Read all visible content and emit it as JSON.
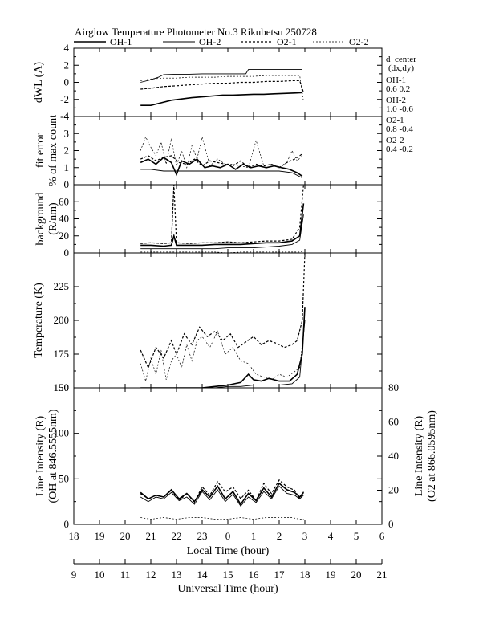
{
  "title": "Airglow Temperature Photometer No.3  Rikubetsu    250728",
  "legend": [
    {
      "name": "OH-1",
      "dash": "",
      "width": 1.6
    },
    {
      "name": "OH-2",
      "dash": "",
      "width": 0.9
    },
    {
      "name": "O2-1",
      "dash": "3,2",
      "width": 1.2
    },
    {
      "name": "O2-2",
      "dash": "2,2",
      "width": 0.7
    }
  ],
  "d_center": {
    "header": "d_center",
    "sub": "(dx,dy)",
    "entries": [
      {
        "name": "OH-1",
        "value": "0.6   0.2"
      },
      {
        "name": "OH-2",
        "value": "1.0   -0.6"
      },
      {
        "name": "O2-1",
        "value": "0.8   -0.4"
      },
      {
        "name": "O2-2",
        "value": "0.4   -0.2"
      }
    ]
  },
  "axes": {
    "local_time": {
      "label": "Local Time (hour)",
      "ticks": [
        "18",
        "19",
        "20",
        "21",
        "22",
        "23",
        "0",
        "1",
        "2",
        "3",
        "4",
        "5",
        "6"
      ]
    },
    "universal_time": {
      "label": "Universal Time (hour)",
      "ticks": [
        "9",
        "10",
        "11",
        "12",
        "13",
        "14",
        "15",
        "16",
        "17",
        "18",
        "19",
        "20",
        "21"
      ]
    }
  },
  "chart_data": [
    {
      "type": "line",
      "ylabel": "dWL (A)",
      "ylim": [
        -4,
        4
      ],
      "yticks": [
        -4,
        -2,
        0,
        2,
        4
      ],
      "series": [
        {
          "name": "OH-1",
          "x": [
            20.6,
            21.0,
            21.4,
            21.8,
            22.2,
            22.6,
            23.0,
            23.4,
            23.8,
            24.2,
            24.6,
            25.0,
            25.4,
            25.8,
            26.2,
            26.6,
            26.9
          ],
          "y": [
            -2.7,
            -2.7,
            -2.4,
            -2.1,
            -1.95,
            -1.8,
            -1.7,
            -1.6,
            -1.5,
            -1.5,
            -1.45,
            -1.4,
            -1.4,
            -1.35,
            -1.3,
            -1.25,
            -1.2
          ]
        },
        {
          "name": "OH-2",
          "x": [
            20.6,
            21.0,
            21.3,
            21.5,
            22.0,
            22.5,
            23.0,
            23.5,
            24.0,
            24.7,
            24.8,
            25.5,
            26.0,
            26.5,
            26.9
          ],
          "y": [
            0.0,
            0.3,
            0.6,
            0.9,
            0.95,
            0.95,
            1.0,
            1.0,
            1.0,
            1.0,
            1.5,
            1.5,
            1.5,
            1.5,
            1.5
          ]
        },
        {
          "name": "O2-1",
          "x": [
            20.6,
            21.0,
            21.5,
            22.0,
            22.5,
            23.0,
            23.5,
            24.0,
            24.5,
            25.0,
            25.5,
            26.0,
            26.5,
            26.8,
            26.95
          ],
          "y": [
            -0.8,
            -0.7,
            -0.5,
            -0.4,
            -0.3,
            -0.2,
            -0.1,
            -0.1,
            0.0,
            0.0,
            0.1,
            0.1,
            0.2,
            0.2,
            -1.2
          ]
        },
        {
          "name": "O2-2",
          "x": [
            20.6,
            21.0,
            21.5,
            22.0,
            22.5,
            23.0,
            23.5,
            24.0,
            24.5,
            25.0,
            25.5,
            26.0,
            26.5,
            26.8,
            26.95
          ],
          "y": [
            0.2,
            0.4,
            0.5,
            0.5,
            0.6,
            0.6,
            0.6,
            0.7,
            0.7,
            0.7,
            0.8,
            0.8,
            0.8,
            0.8,
            -2.3
          ]
        }
      ]
    },
    {
      "type": "line",
      "ylabel": "fit error",
      "ylabel2": "% of max count",
      "ylim": [
        0,
        4
      ],
      "yticks": [
        0,
        1,
        2,
        3,
        4
      ],
      "series": [
        {
          "name": "OH-1",
          "x": [
            20.6,
            20.9,
            21.2,
            21.5,
            21.8,
            22.0,
            22.2,
            22.5,
            22.8,
            23.1,
            23.4,
            23.7,
            24.0,
            24.3,
            24.6,
            24.9,
            25.2,
            25.5,
            25.8,
            26.1,
            26.4,
            26.7,
            26.9
          ],
          "y": [
            1.3,
            1.5,
            1.2,
            1.6,
            1.3,
            0.6,
            1.4,
            1.2,
            1.5,
            1.0,
            1.1,
            1.0,
            1.2,
            0.9,
            1.2,
            1.0,
            1.1,
            1.0,
            1.1,
            1.0,
            0.9,
            0.7,
            0.5
          ]
        },
        {
          "name": "OH-2",
          "x": [
            20.6,
            21.0,
            21.5,
            22.0,
            22.5,
            23.0,
            23.5,
            24.0,
            24.5,
            25.0,
            25.5,
            26.0,
            26.5,
            26.9
          ],
          "y": [
            0.9,
            0.9,
            0.8,
            0.8,
            0.8,
            0.8,
            0.8,
            0.8,
            0.8,
            0.8,
            0.8,
            0.8,
            0.7,
            0.4
          ]
        },
        {
          "name": "O2-1",
          "x": [
            20.6,
            20.9,
            21.2,
            21.5,
            21.8,
            22.1,
            22.4,
            22.7,
            23.0,
            23.3,
            23.6,
            23.9,
            24.2,
            24.5,
            24.8,
            25.1,
            25.4,
            25.7,
            26.0,
            26.3,
            26.6,
            26.9
          ],
          "y": [
            1.5,
            1.7,
            1.4,
            1.6,
            1.7,
            1.3,
            1.2,
            1.5,
            1.1,
            1.4,
            1.3,
            1.2,
            1.1,
            1.4,
            1.0,
            1.2,
            1.1,
            1.2,
            1.0,
            1.3,
            1.5,
            1.8
          ]
        },
        {
          "name": "O2-2",
          "x": [
            20.6,
            20.8,
            21.0,
            21.2,
            21.4,
            21.6,
            21.8,
            22.0,
            22.2,
            22.4,
            22.6,
            22.8,
            23.0,
            23.3,
            23.6,
            23.9,
            24.2,
            24.5,
            24.8,
            25.1,
            25.4,
            25.7,
            26.0,
            26.3,
            26.5,
            26.7,
            26.9
          ],
          "y": [
            2.0,
            2.8,
            2.2,
            1.7,
            2.5,
            1.2,
            2.7,
            1.1,
            2.0,
            1.0,
            2.3,
            1.5,
            2.8,
            1.1,
            1.5,
            1.2,
            1.2,
            1.1,
            1.0,
            2.6,
            1.1,
            1.2,
            1.0,
            1.3,
            2.0,
            1.4,
            1.7
          ]
        }
      ]
    },
    {
      "type": "line",
      "ylabel": "background",
      "ylabel2": "(R/nm)",
      "ylim": [
        0,
        80
      ],
      "yticks": [
        0,
        20,
        40,
        60
      ],
      "series": [
        {
          "name": "OH-1",
          "x": [
            20.6,
            21.0,
            21.5,
            21.8,
            21.9,
            22.0,
            22.5,
            23.0,
            23.5,
            24.0,
            24.5,
            25.0,
            25.5,
            26.0,
            26.5,
            26.8,
            26.95
          ],
          "y": [
            9,
            9,
            8,
            9,
            20,
            9,
            9,
            9,
            10,
            10,
            10,
            11,
            12,
            12,
            14,
            20,
            58
          ]
        },
        {
          "name": "OH-2",
          "x": [
            20.6,
            21.0,
            21.5,
            22.0,
            22.5,
            23.0,
            23.5,
            24.0,
            24.5,
            25.0,
            25.5,
            26.0,
            26.5,
            26.8,
            26.95
          ],
          "y": [
            5,
            5,
            5,
            5,
            5,
            5,
            5,
            6,
            6,
            6,
            7,
            8,
            10,
            15,
            45
          ]
        },
        {
          "name": "O2-1",
          "x": [
            20.6,
            21.0,
            21.5,
            21.8,
            21.9,
            22.0,
            22.5,
            23.0,
            23.5,
            24.0,
            24.5,
            25.0,
            25.5,
            26.0,
            26.5,
            26.8,
            26.95
          ],
          "y": [
            11,
            12,
            11,
            12,
            80,
            12,
            11,
            12,
            12,
            13,
            12,
            13,
            14,
            14,
            16,
            30,
            80
          ]
        },
        {
          "name": "O2-2",
          "x": [
            20.6,
            21.0,
            21.5,
            22.0,
            22.5,
            23.0,
            23.5,
            24.0,
            24.5,
            25.0,
            25.5,
            26.0,
            26.5,
            26.8,
            26.95
          ],
          "y": [
            1,
            1,
            1,
            1,
            1,
            1,
            1,
            0,
            1,
            1,
            1,
            1,
            1,
            1,
            2
          ]
        }
      ]
    },
    {
      "type": "line",
      "ylabel": "Temperature (K)",
      "ylim": [
        150,
        250
      ],
      "yticks": [
        150,
        175,
        200,
        225
      ],
      "series": [
        {
          "name": "OH-1",
          "x": [
            20.6,
            21.0,
            21.5,
            22.0,
            22.5,
            23.0,
            23.5,
            24.0,
            24.5,
            24.8,
            25.0,
            25.3,
            25.6,
            26.0,
            26.4,
            26.7,
            26.9,
            27.0
          ],
          "y": [
            150,
            150,
            150,
            150,
            150,
            150,
            151,
            152,
            154,
            160,
            156,
            155,
            157,
            155,
            155,
            160,
            175,
            210
          ]
        },
        {
          "name": "OH-2",
          "x": [
            20.6,
            21.0,
            21.5,
            22.0,
            22.5,
            23.0,
            23.5,
            24.0,
            24.5,
            25.0,
            25.5,
            26.0,
            26.5,
            26.8,
            27.0
          ],
          "y": [
            150,
            150,
            150,
            150,
            150,
            150,
            150,
            151,
            151,
            152,
            152,
            152,
            153,
            158,
            200
          ]
        },
        {
          "name": "O2-1",
          "x": [
            20.6,
            20.9,
            21.2,
            21.5,
            21.8,
            22.0,
            22.3,
            22.6,
            22.9,
            23.2,
            23.5,
            23.8,
            24.1,
            24.4,
            24.7,
            25.0,
            25.3,
            25.6,
            25.9,
            26.2,
            26.5,
            26.7,
            26.9,
            27.0
          ],
          "y": [
            178,
            165,
            180,
            172,
            185,
            175,
            190,
            182,
            195,
            188,
            192,
            185,
            190,
            180,
            184,
            188,
            182,
            185,
            183,
            180,
            182,
            185,
            200,
            250
          ]
        },
        {
          "name": "O2-2",
          "x": [
            20.6,
            20.8,
            21.0,
            21.2,
            21.4,
            21.6,
            21.8,
            22.0,
            22.2,
            22.4,
            22.6,
            22.8,
            23.0,
            23.3,
            23.6,
            23.9,
            24.2,
            24.5,
            24.8,
            25.1,
            25.4,
            25.7,
            26.0,
            26.3,
            26.6,
            26.8,
            27.0
          ],
          "y": [
            168,
            155,
            172,
            160,
            178,
            156,
            170,
            175,
            165,
            182,
            170,
            185,
            188,
            180,
            192,
            175,
            180,
            170,
            168,
            160,
            158,
            156,
            160,
            158,
            162,
            165,
            200
          ]
        }
      ]
    },
    {
      "type": "line",
      "ylabel": "Line Intensity (R)",
      "ylabel2": "(OH at 846.5555nm)",
      "y2label": "Line Intensity (R)",
      "y2label2": "(O2 at 866.0595nm)",
      "ylim": [
        0,
        150
      ],
      "yticks": [
        0,
        50,
        100,
        150
      ],
      "y2lim": [
        0,
        80
      ],
      "y2ticks": [
        0,
        20,
        40,
        60,
        80
      ],
      "series": [
        {
          "name": "OH-1",
          "axis": "left",
          "x": [
            20.6,
            20.9,
            21.2,
            21.5,
            21.8,
            22.1,
            22.4,
            22.7,
            23.0,
            23.3,
            23.6,
            23.9,
            24.2,
            24.5,
            24.8,
            25.1,
            25.4,
            25.7,
            26.0,
            26.3,
            26.6,
            26.8,
            26.95
          ],
          "y": [
            35,
            28,
            32,
            30,
            38,
            28,
            34,
            25,
            38,
            30,
            42,
            28,
            36,
            22,
            34,
            26,
            40,
            30,
            45,
            38,
            35,
            30,
            35
          ]
        },
        {
          "name": "OH-2",
          "axis": "left",
          "x": [
            20.6,
            20.9,
            21.2,
            21.5,
            21.8,
            22.1,
            22.4,
            22.7,
            23.0,
            23.3,
            23.6,
            23.9,
            24.2,
            24.5,
            24.8,
            25.1,
            25.4,
            25.7,
            26.0,
            26.3,
            26.6,
            26.8,
            26.95
          ],
          "y": [
            30,
            25,
            30,
            28,
            35,
            26,
            30,
            22,
            36,
            27,
            38,
            25,
            33,
            20,
            30,
            24,
            36,
            28,
            42,
            34,
            32,
            28,
            32
          ]
        },
        {
          "name": "O2-1",
          "axis": "right",
          "x": [
            20.6,
            20.9,
            21.2,
            21.5,
            21.8,
            22.1,
            22.4,
            22.7,
            23.0,
            23.3,
            23.6,
            23.9,
            24.2,
            24.5,
            24.8,
            25.1,
            25.4,
            25.7,
            26.0,
            26.3,
            26.6,
            26.8,
            26.95
          ],
          "y": [
            18,
            15,
            17,
            16,
            20,
            14,
            18,
            13,
            22,
            17,
            25,
            19,
            22,
            15,
            20,
            14,
            24,
            18,
            26,
            22,
            20,
            15,
            19
          ]
        },
        {
          "name": "O2-2",
          "axis": "right",
          "x": [
            20.6,
            21.0,
            21.5,
            22.0,
            22.5,
            23.0,
            23.5,
            24.0,
            24.5,
            25.0,
            25.5,
            26.0,
            26.5,
            26.8,
            26.95
          ],
          "y": [
            4,
            3,
            4,
            3,
            4,
            4,
            3,
            3,
            4,
            3,
            4,
            4,
            4,
            3,
            3
          ]
        }
      ]
    }
  ]
}
